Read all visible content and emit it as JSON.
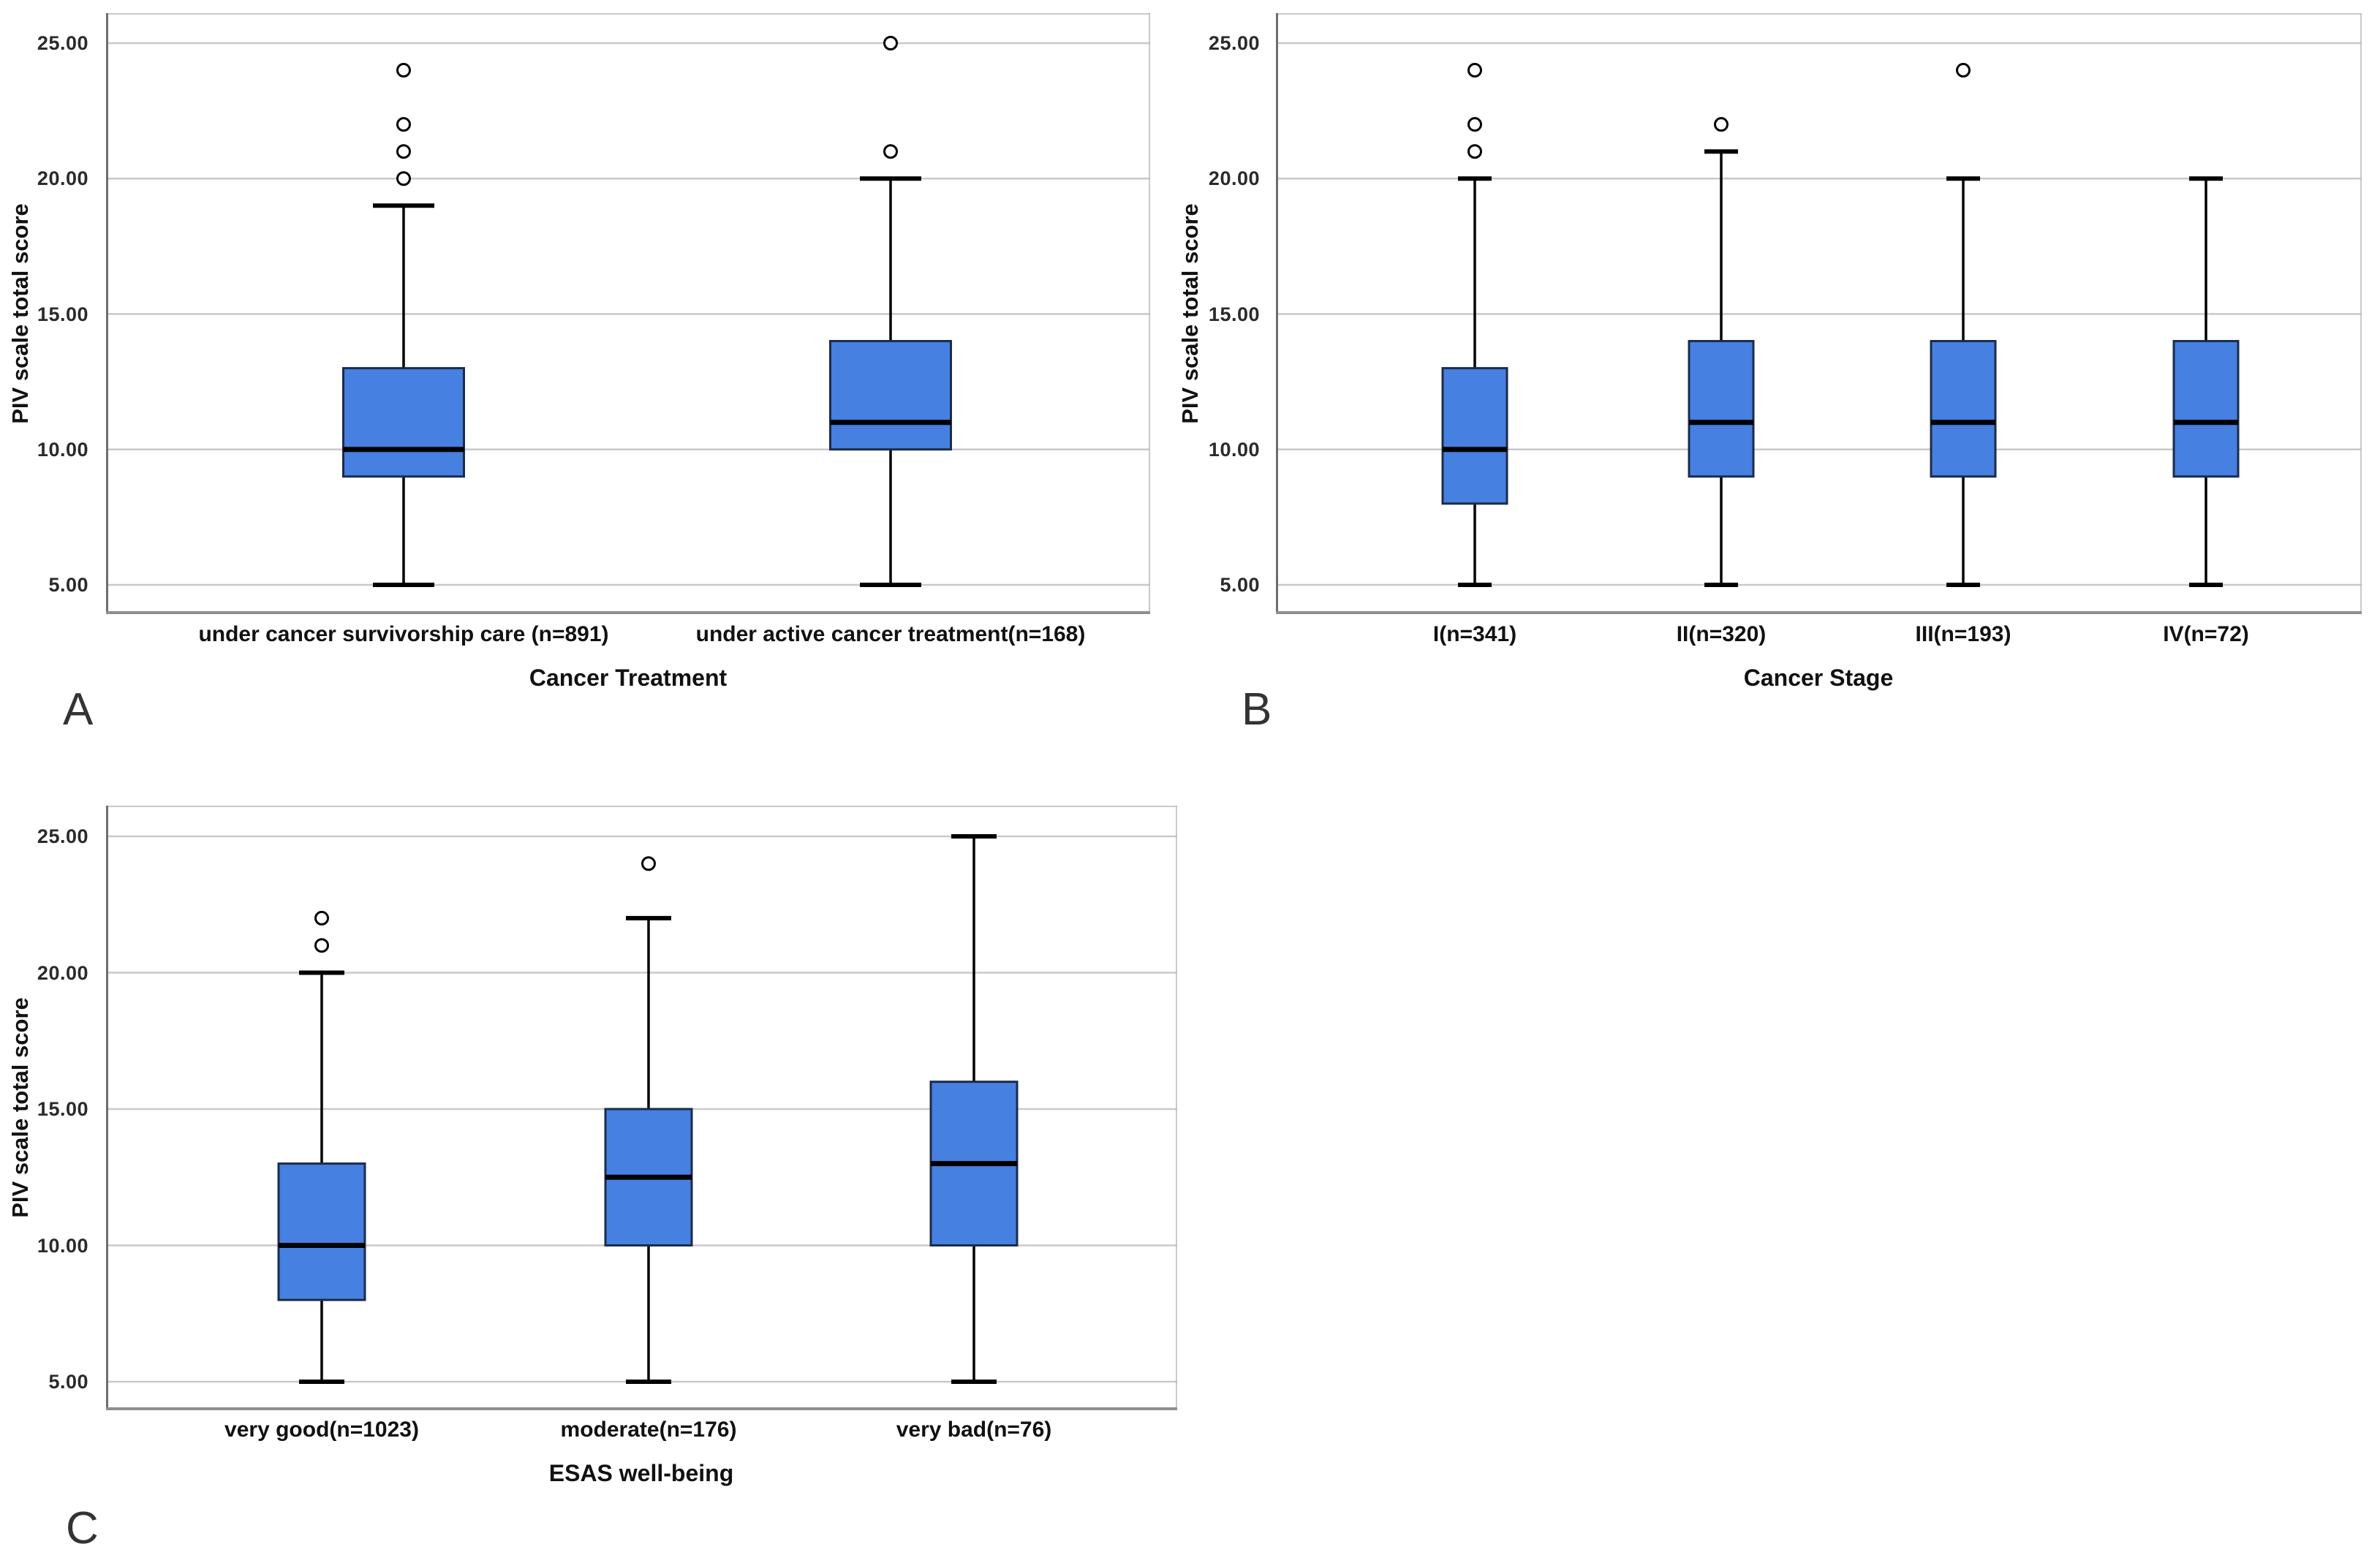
{
  "figure": {
    "background": "#ffffff",
    "colors": {
      "box_fill": "#4680E0",
      "box_border": "#1C2B4A",
      "median_line": "#000000",
      "whisker": "#000000",
      "outlier_stroke": "#000000",
      "gridline": "#C9C9C9",
      "frame": "#8F8F8F",
      "axis_line": "#6E6E6E",
      "text": "#111111"
    }
  },
  "chart_data": [
    {
      "type": "box",
      "panel_label": "A",
      "xlabel": "Cancer Treatment",
      "ylabel": "PIV scale total score",
      "grid": true,
      "ylim": [
        3.9,
        26.1
      ],
      "yticks": [
        5,
        10,
        15,
        20,
        25
      ],
      "ytick_labels": [
        "5.00",
        "10.00",
        "15.00",
        "20.00",
        "25.00"
      ],
      "categories": [
        "under cancer survivorship care (n=891)",
        "under active cancer treatment(n=168)"
      ],
      "series": [
        {
          "category": "under cancer survivorship care (n=891)",
          "n": 891,
          "whisker_low": 5,
          "q1": 9,
          "median": 10,
          "q3": 13,
          "whisker_high": 19,
          "outliers": [
            20,
            21,
            22,
            24
          ]
        },
        {
          "category": "under active cancer treatment(n=168)",
          "n": 168,
          "whisker_low": 5,
          "q1": 10,
          "median": 11,
          "q3": 14,
          "whisker_high": 20,
          "outliers": [
            21,
            25
          ]
        }
      ]
    },
    {
      "type": "box",
      "panel_label": "B",
      "xlabel": "Cancer Stage",
      "ylabel": "PIV scale total score",
      "grid": true,
      "ylim": [
        3.9,
        26.1
      ],
      "yticks": [
        5,
        10,
        15,
        20,
        25
      ],
      "ytick_labels": [
        "5.00",
        "10.00",
        "15.00",
        "20.00",
        "25.00"
      ],
      "categories": [
        "I(n=341)",
        "II(n=320)",
        "III(n=193)",
        "IV(n=72)"
      ],
      "series": [
        {
          "category": "I(n=341)",
          "n": 341,
          "whisker_low": 5,
          "q1": 8,
          "median": 10,
          "q3": 13,
          "whisker_high": 20,
          "outliers": [
            21,
            22,
            24
          ]
        },
        {
          "category": "II(n=320)",
          "n": 320,
          "whisker_low": 5,
          "q1": 9,
          "median": 11,
          "q3": 14,
          "whisker_high": 21,
          "outliers": [
            22
          ]
        },
        {
          "category": "III(n=193)",
          "n": 193,
          "whisker_low": 5,
          "q1": 9,
          "median": 11,
          "q3": 14,
          "whisker_high": 20,
          "outliers": [
            24
          ]
        },
        {
          "category": "IV(n=72)",
          "n": 72,
          "whisker_low": 5,
          "q1": 9,
          "median": 11,
          "q3": 14,
          "whisker_high": 20,
          "outliers": []
        }
      ]
    },
    {
      "type": "box",
      "panel_label": "C",
      "xlabel": "ESAS well-being",
      "ylabel": "PIV scale total score",
      "grid": true,
      "ylim": [
        3.9,
        26.1
      ],
      "yticks": [
        5,
        10,
        15,
        20,
        25
      ],
      "ytick_labels": [
        "5.00",
        "10.00",
        "15.00",
        "20.00",
        "25.00"
      ],
      "categories": [
        "very good(n=1023)",
        "moderate(n=176)",
        "very bad(n=76)"
      ],
      "series": [
        {
          "category": "very good(n=1023)",
          "n": 1023,
          "whisker_low": 5,
          "q1": 8,
          "median": 10,
          "q3": 13,
          "whisker_high": 20,
          "outliers": [
            21,
            22
          ]
        },
        {
          "category": "moderate(n=176)",
          "n": 176,
          "whisker_low": 5,
          "q1": 10,
          "median": 12.5,
          "q3": 15,
          "whisker_high": 22,
          "outliers": [
            24
          ]
        },
        {
          "category": "very bad(n=76)",
          "n": 76,
          "whisker_low": 5,
          "q1": 10,
          "median": 13,
          "q3": 16,
          "whisker_high": 25,
          "outliers": []
        }
      ]
    }
  ]
}
